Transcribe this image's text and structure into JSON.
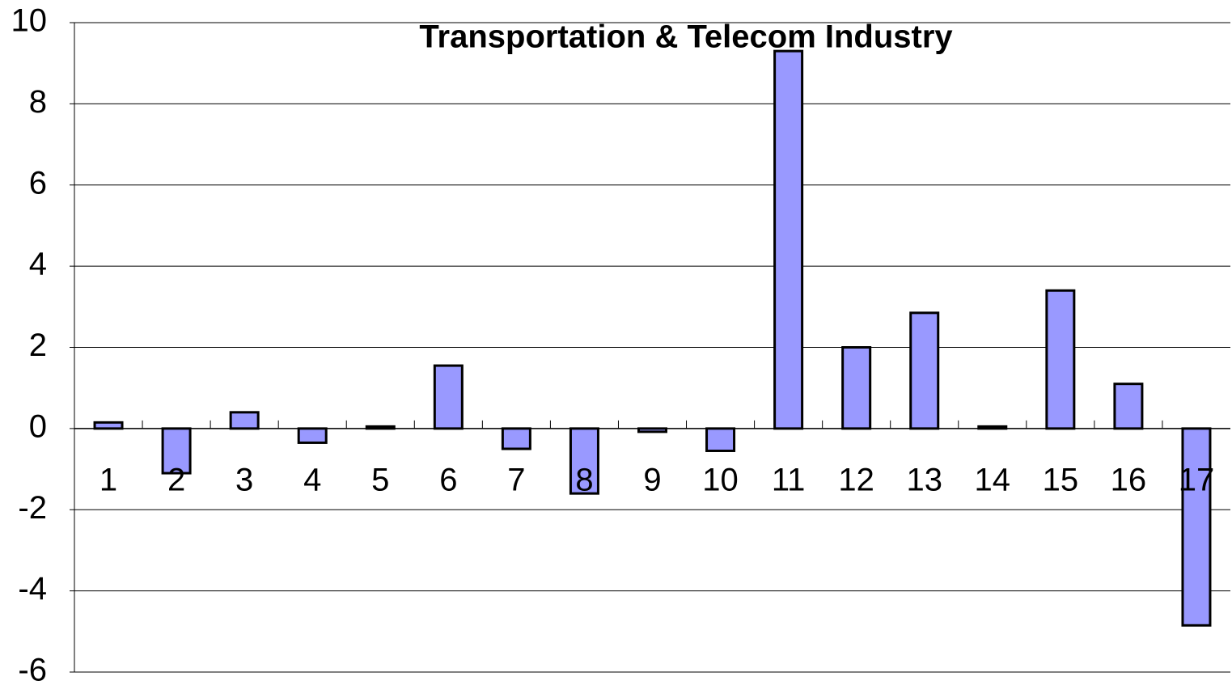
{
  "chart_data": {
    "type": "bar",
    "title": "Transportation & Telecom Industry",
    "categories": [
      "1",
      "2",
      "3",
      "4",
      "5",
      "6",
      "7",
      "8",
      "9",
      "10",
      "11",
      "12",
      "13",
      "14",
      "15",
      "16",
      "17"
    ],
    "values": [
      0.15,
      -1.1,
      0.4,
      -0.35,
      0.05,
      1.55,
      -0.5,
      -1.6,
      -0.08,
      -0.55,
      9.3,
      2.0,
      2.85,
      0.05,
      3.4,
      1.1,
      -4.85
    ],
    "color": "#9999ff",
    "ylim": [
      -6,
      10
    ],
    "yticks": [
      -6,
      -4,
      -2,
      0,
      2,
      4,
      6,
      8,
      10
    ],
    "grid": true
  }
}
